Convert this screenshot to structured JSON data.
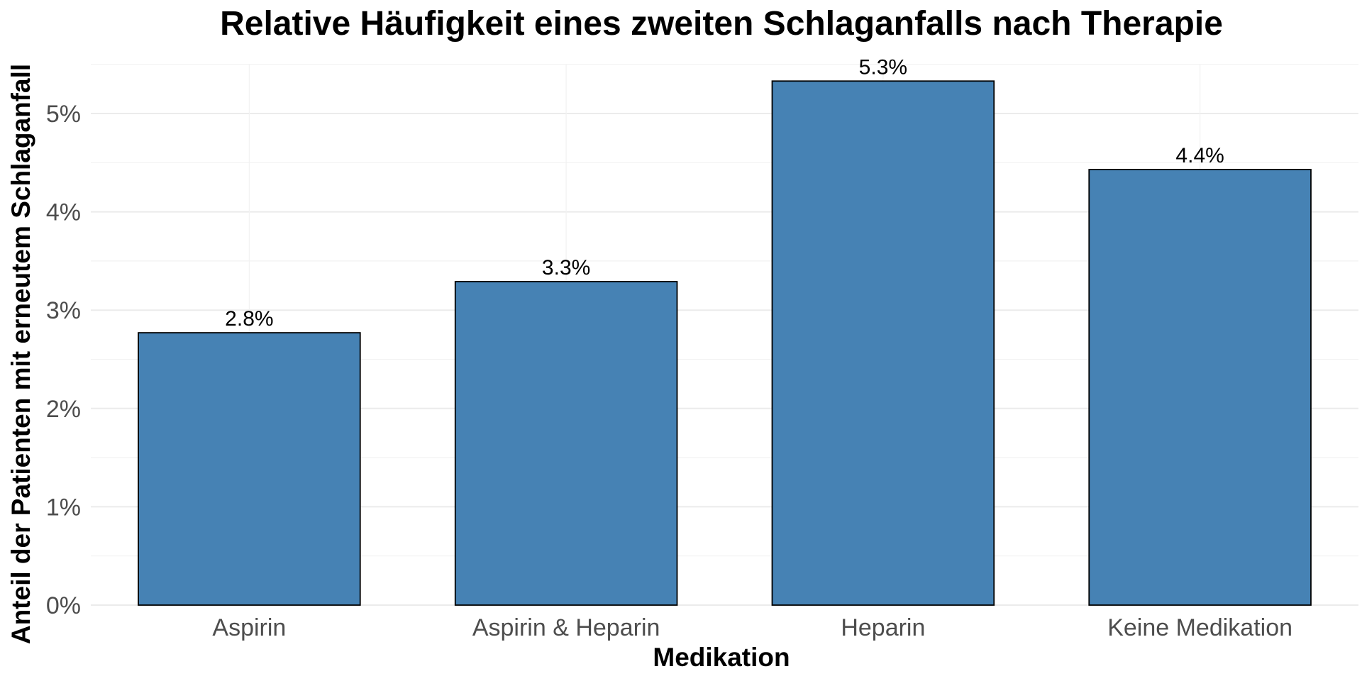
{
  "chart_data": {
    "type": "bar",
    "title": "Relative Häufigkeit eines zweiten Schlaganfalls nach Therapie",
    "xlabel": "Medikation",
    "ylabel": "Anteil der Patienten mit erneutem Schlaganfall",
    "categories": [
      "Aspirin",
      "Aspirin & Heparin",
      "Heparin",
      "Keine Medikation"
    ],
    "values": [
      2.77,
      3.29,
      5.33,
      4.43
    ],
    "data_labels": [
      "2.8%",
      "3.3%",
      "5.3%",
      "4.4%"
    ],
    "y_ticks": [
      0,
      1,
      2,
      3,
      4,
      5
    ],
    "y_tick_labels": [
      "0%",
      "1%",
      "2%",
      "3%",
      "4%",
      "5%"
    ],
    "ylim": [
      0,
      5.5
    ],
    "grid": true,
    "legend": "none",
    "bar_color": "#4682B4",
    "bar_outline_color": "#000000"
  }
}
